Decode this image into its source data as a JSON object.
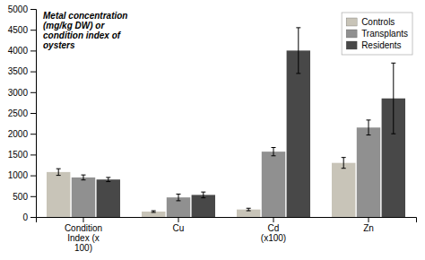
{
  "chart_data": {
    "type": "bar",
    "categories": [
      "Condition\nIndex (x\n100)",
      "Cu",
      "Cd\n(x100)",
      "Zn"
    ],
    "series": [
      {
        "name": "Controls",
        "color": "#c8c4b8",
        "values": [
          1080,
          130,
          180,
          1300
        ],
        "errors": [
          80,
          20,
          30,
          130
        ]
      },
      {
        "name": "Transplants",
        "color": "#909090",
        "values": [
          950,
          470,
          1570,
          2150
        ],
        "errors": [
          60,
          80,
          100,
          180
        ]
      },
      {
        "name": "Residents",
        "color": "#484848",
        "values": [
          900,
          530,
          4000,
          2850
        ],
        "errors": [
          50,
          70,
          550,
          850
        ]
      }
    ],
    "ylabel": "Metal concentration\n(mg/kg DW) or\ncondition index of\noysters",
    "ylim": [
      0,
      5000
    ],
    "yticks": [
      0,
      500,
      1000,
      1500,
      2000,
      2500,
      3000,
      3500,
      4000,
      4500,
      5000
    ],
    "legend": "upper right",
    "grid": false
  }
}
